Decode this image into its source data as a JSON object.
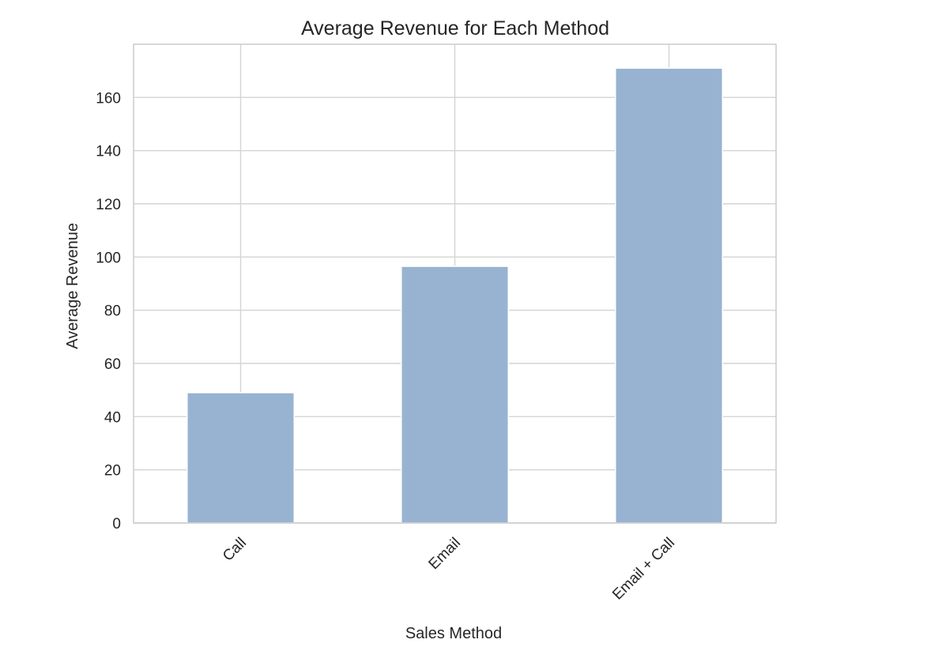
{
  "chart_data": {
    "type": "bar",
    "title": "Average Revenue for Each Method",
    "xlabel": "Sales Method",
    "ylabel": "Average Revenue",
    "categories": [
      "Call",
      "Email",
      "Email + Call"
    ],
    "values": [
      49,
      96.5,
      171
    ],
    "ylim": [
      0,
      180
    ],
    "yticks": [
      0,
      20,
      40,
      60,
      80,
      100,
      120,
      140,
      160
    ],
    "ytick_labels": [
      "0",
      "20",
      "40",
      "60",
      "80",
      "100",
      "120",
      "140",
      "160"
    ],
    "grid": true,
    "bar_color": "#98b3d1",
    "grid_color": "#d4d4d4",
    "xtick_rotation_deg": 45
  }
}
